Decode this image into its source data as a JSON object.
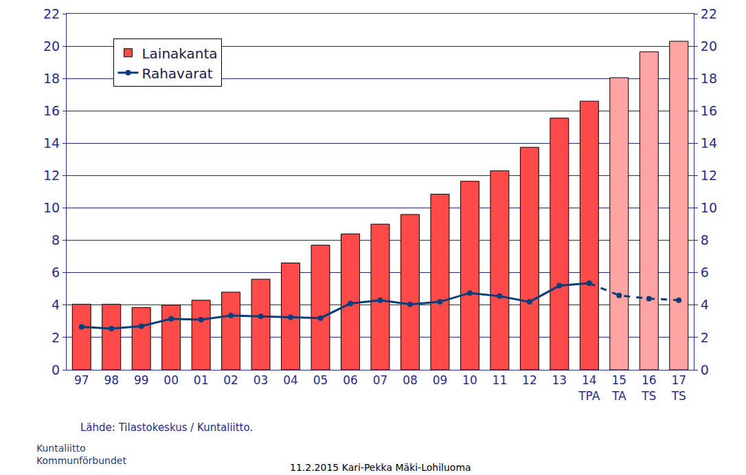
{
  "chart_data": {
    "type": "bar",
    "categories": [
      "97",
      "98",
      "99",
      "00",
      "01",
      "02",
      "03",
      "04",
      "05",
      "06",
      "07",
      "08",
      "09",
      "10",
      "11",
      "12",
      "13",
      "14\nTPA",
      "15\nTA",
      "16\nTS",
      "17\nTS"
    ],
    "series": [
      {
        "name": "Lainakanta",
        "type": "bar",
        "colors": [
          "#ff4a4a",
          "#ff4a4a",
          "#ff4a4a",
          "#ff4a4a",
          "#ff4a4a",
          "#ff4a4a",
          "#ff4a4a",
          "#ff4a4a",
          "#ff4a4a",
          "#ff4a4a",
          "#ff4a4a",
          "#ff4a4a",
          "#ff4a4a",
          "#ff4a4a",
          "#ff4a4a",
          "#ff4a4a",
          "#ff4a4a",
          "#ff4a4a",
          "#ffa3a3",
          "#ffa3a3",
          "#ffa3a3"
        ],
        "values": [
          4.05,
          4.05,
          3.85,
          4.0,
          4.3,
          4.8,
          5.6,
          6.6,
          7.7,
          8.4,
          9.0,
          9.6,
          10.85,
          11.65,
          12.3,
          13.75,
          15.55,
          16.6,
          18.05,
          19.65,
          20.3
        ]
      },
      {
        "name": "Rahavarat",
        "type": "line",
        "color": "#0a3d7a",
        "marker": "circle",
        "line_style": "solid",
        "values": [
          2.65,
          2.55,
          2.7,
          3.15,
          3.1,
          3.35,
          3.3,
          3.25,
          3.2,
          4.1,
          4.3,
          4.05,
          4.2,
          4.75,
          4.55,
          4.2,
          5.2,
          5.35,
          null,
          null,
          null
        ]
      },
      {
        "name": "Rahavarat",
        "type": "line",
        "color": "#0a3d7a",
        "marker": "circle",
        "line_style": "dashed",
        "values": [
          null,
          null,
          null,
          null,
          null,
          null,
          null,
          null,
          null,
          null,
          null,
          null,
          null,
          null,
          null,
          null,
          null,
          5.35,
          4.6,
          4.4,
          4.3
        ]
      }
    ],
    "ylim": [
      0,
      22
    ],
    "yticks": [
      0,
      2,
      4,
      6,
      8,
      10,
      12,
      14,
      16,
      18,
      20,
      22
    ],
    "y2lim": [
      0,
      22
    ],
    "y2ticks": [
      0,
      2,
      4,
      6,
      8,
      10,
      12,
      14,
      16,
      18,
      20,
      22
    ],
    "grid": true,
    "legend": "upper left",
    "annotations": [
      "Lähde: Tilastokeskus / Kuntaliitto.",
      "11.2.2015 Kari-Pekka Mäki-Lohiluoma",
      "Kuntaliitto\nKommunförbundet"
    ]
  }
}
